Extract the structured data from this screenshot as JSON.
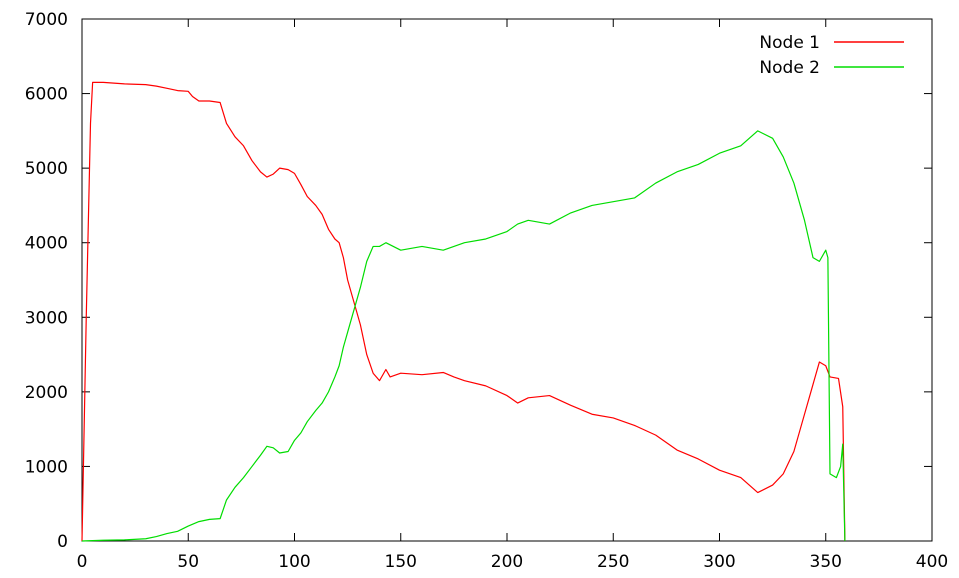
{
  "chart_data": {
    "type": "line",
    "title": "",
    "xlabel": "",
    "ylabel": "",
    "xlim": [
      0,
      400
    ],
    "ylim": [
      0,
      7000
    ],
    "grid": false,
    "legend_position": "top-right",
    "x_ticks": [
      0,
      50,
      100,
      150,
      200,
      250,
      300,
      350,
      400
    ],
    "y_ticks": [
      0,
      1000,
      2000,
      3000,
      4000,
      5000,
      6000,
      7000
    ],
    "series": [
      {
        "name": "Node 1",
        "color": "#ff0000",
        "points": [
          [
            0,
            0
          ],
          [
            2,
            3000
          ],
          [
            4,
            5600
          ],
          [
            5,
            6150
          ],
          [
            10,
            6150
          ],
          [
            20,
            6130
          ],
          [
            30,
            6120
          ],
          [
            35,
            6100
          ],
          [
            40,
            6070
          ],
          [
            45,
            6040
          ],
          [
            50,
            6030
          ],
          [
            52,
            5960
          ],
          [
            55,
            5900
          ],
          [
            60,
            5900
          ],
          [
            65,
            5880
          ],
          [
            68,
            5600
          ],
          [
            72,
            5420
          ],
          [
            76,
            5300
          ],
          [
            80,
            5100
          ],
          [
            84,
            4950
          ],
          [
            87,
            4880
          ],
          [
            90,
            4920
          ],
          [
            93,
            5000
          ],
          [
            97,
            4980
          ],
          [
            100,
            4930
          ],
          [
            103,
            4780
          ],
          [
            106,
            4620
          ],
          [
            110,
            4500
          ],
          [
            113,
            4380
          ],
          [
            116,
            4180
          ],
          [
            119,
            4050
          ],
          [
            121,
            4000
          ],
          [
            123,
            3800
          ],
          [
            125,
            3500
          ],
          [
            128,
            3200
          ],
          [
            131,
            2900
          ],
          [
            134,
            2500
          ],
          [
            137,
            2250
          ],
          [
            140,
            2150
          ],
          [
            143,
            2300
          ],
          [
            145,
            2200
          ],
          [
            150,
            2250
          ],
          [
            160,
            2230
          ],
          [
            170,
            2260
          ],
          [
            175,
            2200
          ],
          [
            180,
            2150
          ],
          [
            190,
            2080
          ],
          [
            200,
            1950
          ],
          [
            205,
            1850
          ],
          [
            210,
            1920
          ],
          [
            220,
            1950
          ],
          [
            230,
            1820
          ],
          [
            240,
            1700
          ],
          [
            250,
            1650
          ],
          [
            260,
            1550
          ],
          [
            270,
            1420
          ],
          [
            280,
            1220
          ],
          [
            290,
            1100
          ],
          [
            300,
            950
          ],
          [
            310,
            850
          ],
          [
            318,
            650
          ],
          [
            325,
            750
          ],
          [
            330,
            900
          ],
          [
            335,
            1200
          ],
          [
            340,
            1700
          ],
          [
            344,
            2100
          ],
          [
            347,
            2400
          ],
          [
            350,
            2350
          ],
          [
            352,
            2200
          ],
          [
            356,
            2180
          ],
          [
            358,
            1800
          ],
          [
            359,
            0
          ]
        ]
      },
      {
        "name": "Node 2",
        "color": "#00dd00",
        "points": [
          [
            0,
            0
          ],
          [
            10,
            10
          ],
          [
            20,
            15
          ],
          [
            30,
            30
          ],
          [
            35,
            60
          ],
          [
            40,
            100
          ],
          [
            45,
            130
          ],
          [
            50,
            200
          ],
          [
            55,
            260
          ],
          [
            60,
            290
          ],
          [
            65,
            300
          ],
          [
            68,
            550
          ],
          [
            72,
            720
          ],
          [
            76,
            850
          ],
          [
            80,
            1000
          ],
          [
            84,
            1150
          ],
          [
            87,
            1270
          ],
          [
            90,
            1250
          ],
          [
            93,
            1180
          ],
          [
            97,
            1200
          ],
          [
            100,
            1350
          ],
          [
            103,
            1450
          ],
          [
            106,
            1600
          ],
          [
            110,
            1750
          ],
          [
            113,
            1850
          ],
          [
            116,
            2000
          ],
          [
            119,
            2200
          ],
          [
            121,
            2350
          ],
          [
            123,
            2600
          ],
          [
            125,
            2800
          ],
          [
            128,
            3100
          ],
          [
            131,
            3400
          ],
          [
            134,
            3750
          ],
          [
            137,
            3950
          ],
          [
            140,
            3950
          ],
          [
            143,
            4000
          ],
          [
            150,
            3900
          ],
          [
            160,
            3950
          ],
          [
            170,
            3900
          ],
          [
            175,
            3950
          ],
          [
            180,
            4000
          ],
          [
            190,
            4050
          ],
          [
            200,
            4150
          ],
          [
            205,
            4250
          ],
          [
            210,
            4300
          ],
          [
            220,
            4250
          ],
          [
            230,
            4400
          ],
          [
            240,
            4500
          ],
          [
            250,
            4550
          ],
          [
            260,
            4600
          ],
          [
            270,
            4800
          ],
          [
            280,
            4950
          ],
          [
            290,
            5050
          ],
          [
            300,
            5200
          ],
          [
            310,
            5300
          ],
          [
            318,
            5500
          ],
          [
            325,
            5400
          ],
          [
            330,
            5150
          ],
          [
            335,
            4800
          ],
          [
            340,
            4300
          ],
          [
            344,
            3800
          ],
          [
            347,
            3750
          ],
          [
            350,
            3900
          ],
          [
            351,
            3800
          ],
          [
            352,
            900
          ],
          [
            355,
            850
          ],
          [
            357,
            1000
          ],
          [
            358,
            1300
          ],
          [
            359,
            0
          ]
        ]
      }
    ]
  }
}
